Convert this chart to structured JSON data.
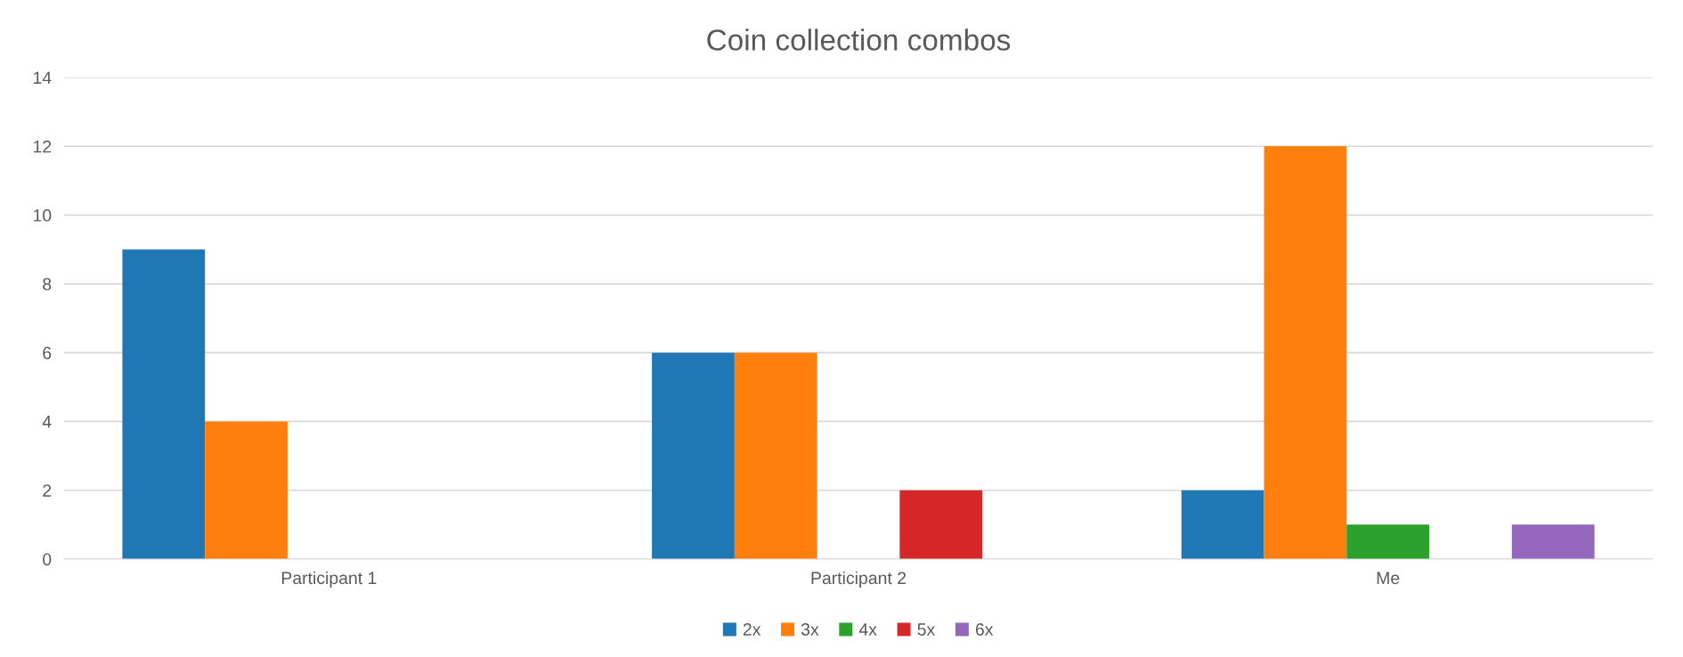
{
  "chart_data": {
    "type": "bar",
    "title": "Coin collection combos",
    "categories": [
      "Participant 1",
      "Participant 2",
      "Me"
    ],
    "series": [
      {
        "name": "2x",
        "color": "#1f77b4",
        "values": [
          9,
          6,
          2
        ]
      },
      {
        "name": "3x",
        "color": "#ff7f0e",
        "values": [
          4,
          6,
          12
        ]
      },
      {
        "name": "4x",
        "color": "#2ca02c",
        "values": [
          null,
          null,
          1
        ]
      },
      {
        "name": "5x",
        "color": "#d62728",
        "values": [
          null,
          2,
          null
        ]
      },
      {
        "name": "6x",
        "color": "#9467bd",
        "values": [
          null,
          null,
          1
        ]
      }
    ],
    "ylim": [
      0,
      14
    ],
    "yticks": [
      0,
      2,
      4,
      6,
      8,
      10,
      12,
      14
    ],
    "grid": "y",
    "legend": "bottom"
  }
}
